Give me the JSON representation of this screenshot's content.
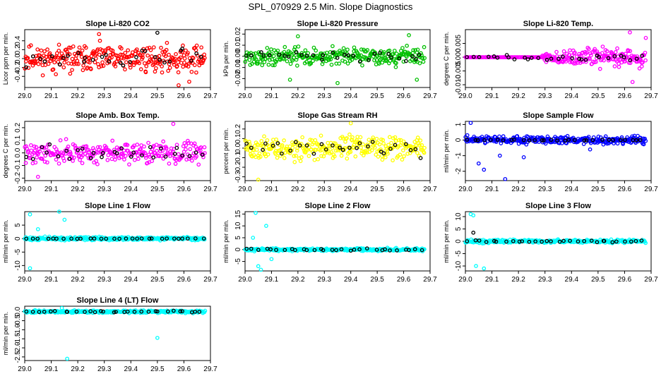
{
  "figure": {
    "title": "SPL_070929  2.5 Min. Slope Diagnostics"
  },
  "chart_data": [
    {
      "type": "scatter",
      "title": "Slope Li-820 CO2",
      "xlabel": "",
      "ylabel": "Licor ppm per min.",
      "xlim": [
        29.0,
        29.7
      ],
      "ylim": [
        -0.65,
        0.65
      ],
      "xticks": [
        "29.0",
        "29.1",
        "29.2",
        "29.3",
        "29.4",
        "29.5",
        "29.6",
        "29.7"
      ],
      "yticks": [
        -0.4,
        -0.2,
        0.0,
        0.2,
        0.4
      ],
      "ytick_labels": [
        "-0.4",
        "-0.2",
        "0.0",
        "0.2",
        "0.4"
      ],
      "series": [
        {
          "name": "all",
          "color": "#ff0000",
          "center": 0.0,
          "spread": 0.42,
          "n": 300,
          "seed": 11
        },
        {
          "name": "mean",
          "color": "#000000",
          "center": 0.0,
          "spread": 0.3,
          "n": 30,
          "seed": 12
        }
      ],
      "outliers": [
        {
          "x": 29.5,
          "y": 0.58,
          "series": "mean"
        },
        {
          "x": 29.28,
          "y": 0.55,
          "series": "all"
        },
        {
          "x": 29.58,
          "y": -0.6,
          "series": "all"
        },
        {
          "x": 29.62,
          "y": -0.52,
          "series": "all"
        }
      ]
    },
    {
      "type": "scatter",
      "title": "Slope Li-820 Pressure",
      "xlabel": "",
      "ylabel": "kPa per min.",
      "xlim": [
        29.0,
        29.7
      ],
      "ylim": [
        -0.028,
        0.024
      ],
      "xticks": [
        "29.0",
        "29.1",
        "29.2",
        "29.3",
        "29.4",
        "29.5",
        "29.6",
        "29.7"
      ],
      "yticks": [
        -0.02,
        -0.01,
        0.0,
        0.01,
        0.02
      ],
      "ytick_labels": [
        "-0.02",
        "-0.01",
        "0.00",
        "0.01",
        "0.02"
      ],
      "series": [
        {
          "name": "all",
          "color": "#00c000",
          "center": 0.0,
          "spread": 0.011,
          "n": 300,
          "seed": 21
        },
        {
          "name": "mean",
          "color": "#000000",
          "center": 0.0,
          "spread": 0.006,
          "n": 30,
          "seed": 22
        }
      ],
      "outliers": [
        {
          "x": 29.2,
          "y": 0.018,
          "series": "all"
        },
        {
          "x": 29.62,
          "y": 0.019,
          "series": "all"
        },
        {
          "x": 29.17,
          "y": -0.021,
          "series": "all"
        },
        {
          "x": 29.35,
          "y": -0.024,
          "series": "all"
        },
        {
          "x": 29.65,
          "y": -0.021,
          "series": "all"
        }
      ]
    },
    {
      "type": "scatter",
      "title": "Slope Li-820 Temp.",
      "xlabel": "",
      "ylabel": "degrees C per min.",
      "xlim": [
        29.0,
        29.7
      ],
      "ylim": [
        -0.011,
        0.01
      ],
      "xticks": [
        "29.0",
        "29.1",
        "29.2",
        "29.3",
        "29.4",
        "29.5",
        "29.6",
        "29.7"
      ],
      "yticks": [
        -0.01,
        -0.005,
        0.0,
        0.005
      ],
      "ytick_labels": [
        "-0.010",
        "-0.005",
        "0.000",
        "0.005"
      ],
      "series": [
        {
          "name": "flat",
          "color": "#ff00ff",
          "center": 0.0,
          "spread": 0.0,
          "n": 90,
          "seed": 31,
          "x_range": [
            29.0,
            29.29
          ]
        },
        {
          "name": "all",
          "color": "#ff00ff",
          "center": 0.0,
          "spread": 0.006,
          "n": 180,
          "seed": 32,
          "x_range": [
            29.29,
            29.68
          ],
          "grow": true
        },
        {
          "name": "mean",
          "color": "#000000",
          "center": 0.0,
          "spread": 0.003,
          "n": 30,
          "seed": 33,
          "grow": true
        }
      ],
      "outliers": [
        {
          "x": 29.62,
          "y": 0.009,
          "series": "all"
        },
        {
          "x": 29.68,
          "y": 0.007,
          "series": "all"
        },
        {
          "x": 29.63,
          "y": -0.009,
          "series": "all"
        }
      ]
    },
    {
      "type": "scatter",
      "title": "Slope Amb. Box Temp.",
      "xlabel": "",
      "ylabel": "degrees C per min.",
      "xlim": [
        29.0,
        29.7
      ],
      "ylim": [
        -0.22,
        0.25
      ],
      "xticks": [
        "29.0",
        "29.1",
        "29.2",
        "29.3",
        "29.4",
        "29.5",
        "29.6",
        "29.7"
      ],
      "yticks": [
        -0.2,
        -0.1,
        0.0,
        0.1,
        0.2
      ],
      "ytick_labels": [
        "-0.2",
        "-0.1",
        "0.0",
        "0.1",
        "0.2"
      ],
      "series": [
        {
          "name": "all",
          "color": "#ff00ff",
          "center": 0.0,
          "spread": 0.12,
          "n": 280,
          "seed": 41
        },
        {
          "name": "mean",
          "color": "#000000",
          "center": 0.0,
          "spread": 0.08,
          "n": 30,
          "seed": 42
        }
      ],
      "outliers": [
        {
          "x": 29.56,
          "y": 0.23,
          "series": "all"
        },
        {
          "x": 29.05,
          "y": -0.19,
          "series": "all"
        }
      ]
    },
    {
      "type": "scatter",
      "title": "Slope Gas Stream RH",
      "xlabel": "",
      "ylabel": "percent per min.",
      "xlim": [
        29.0,
        29.7
      ],
      "ylim": [
        -0.34,
        0.28
      ],
      "xticks": [
        "29.0",
        "29.1",
        "29.2",
        "29.3",
        "29.4",
        "29.5",
        "29.6",
        "29.7"
      ],
      "yticks": [
        -0.3,
        -0.2,
        -0.1,
        0.0,
        0.1,
        0.2
      ],
      "ytick_labels": [
        "-0.3",
        "-0.2",
        "-0.1",
        "0.0",
        "0.1",
        "0.2"
      ],
      "series": [
        {
          "name": "all",
          "color": "#ffff00",
          "center": 0.0,
          "spread": 0.17,
          "n": 300,
          "seed": 51
        },
        {
          "name": "mean",
          "color": "#000000",
          "center": 0.0,
          "spread": 0.14,
          "n": 30,
          "seed": 52
        }
      ],
      "outliers": [
        {
          "x": 29.05,
          "y": -0.33,
          "series": "all"
        },
        {
          "x": 29.4,
          "y": 0.26,
          "series": "all"
        }
      ]
    },
    {
      "type": "scatter",
      "title": "Slope Sample Flow",
      "xlabel": "",
      "ylabel": "ml/min per min.",
      "xlim": [
        29.0,
        29.7
      ],
      "ylim": [
        -2.6,
        1.2
      ],
      "xticks": [
        "29.0",
        "29.1",
        "29.2",
        "29.3",
        "29.4",
        "29.5",
        "29.6",
        "29.7"
      ],
      "yticks": [
        -2,
        -1,
        0,
        1
      ],
      "ytick_labels": [
        "-2",
        "-1",
        "0",
        "1"
      ],
      "series": [
        {
          "name": "all",
          "color": "#0000ff",
          "center": 0.0,
          "spread": 0.35,
          "n": 300,
          "seed": 61
        },
        {
          "name": "mean",
          "color": "#000000",
          "center": 0.0,
          "spread": 0.05,
          "n": 30,
          "seed": 62
        }
      ],
      "outliers": [
        {
          "x": 29.02,
          "y": 1.1,
          "series": "all"
        },
        {
          "x": 29.05,
          "y": -1.5,
          "series": "all"
        },
        {
          "x": 29.07,
          "y": -1.9,
          "series": "all"
        },
        {
          "x": 29.13,
          "y": -1.0,
          "series": "all"
        },
        {
          "x": 29.15,
          "y": -2.5,
          "series": "all"
        },
        {
          "x": 29.22,
          "y": -1.1,
          "series": "all"
        },
        {
          "x": 29.47,
          "y": -0.6,
          "series": "all"
        }
      ]
    },
    {
      "type": "scatter",
      "title": "Slope Line 1 Flow",
      "xlabel": "",
      "ylabel": "ml/min per min.",
      "xlim": [
        29.0,
        29.7
      ],
      "ylim": [
        -12,
        10
      ],
      "xticks": [
        "29.0",
        "29.1",
        "29.2",
        "29.3",
        "29.4",
        "29.5",
        "29.6",
        "29.7"
      ],
      "yticks": [
        -10,
        -5,
        0,
        5
      ],
      "ytick_labels": [
        "-10",
        "-5",
        "0",
        "5"
      ],
      "series": [
        {
          "name": "all",
          "color": "#00ffff",
          "center": 0.0,
          "spread": 0.9,
          "n": 300,
          "seed": 71
        },
        {
          "name": "mean",
          "color": "#000000",
          "center": 0.0,
          "spread": 0.15,
          "n": 30,
          "seed": 72
        }
      ],
      "outliers": [
        {
          "x": 29.02,
          "y": 9,
          "series": "all"
        },
        {
          "x": 29.13,
          "y": 10,
          "series": "all"
        },
        {
          "x": 29.15,
          "y": 7,
          "series": "all"
        },
        {
          "x": 29.02,
          "y": -11,
          "series": "all"
        },
        {
          "x": 29.05,
          "y": 3.5,
          "series": "all"
        }
      ]
    },
    {
      "type": "scatter",
      "title": "Slope Line 2 Flow",
      "xlabel": "",
      "ylabel": "ml/min per min.",
      "xlim": [
        29.0,
        29.7
      ],
      "ylim": [
        -9,
        16
      ],
      "xticks": [
        "29.0",
        "29.1",
        "29.2",
        "29.3",
        "29.4",
        "29.5",
        "29.6",
        "29.7"
      ],
      "yticks": [
        -5,
        0,
        5,
        10,
        15
      ],
      "ytick_labels": [
        "-5",
        "0",
        "5",
        "10",
        "15"
      ],
      "series": [
        {
          "name": "all",
          "color": "#00ffff",
          "center": 0.0,
          "spread": 0.9,
          "n": 300,
          "seed": 81
        },
        {
          "name": "mean",
          "color": "#000000",
          "center": 0.0,
          "spread": 0.6,
          "n": 30,
          "seed": 82
        }
      ],
      "outliers": [
        {
          "x": 29.04,
          "y": 15.5,
          "series": "all"
        },
        {
          "x": 29.08,
          "y": 10,
          "series": "all"
        },
        {
          "x": 29.03,
          "y": 5,
          "series": "all"
        },
        {
          "x": 29.05,
          "y": -7,
          "series": "all"
        },
        {
          "x": 29.06,
          "y": -8.5,
          "series": "all"
        },
        {
          "x": 29.1,
          "y": -4,
          "series": "all"
        }
      ]
    },
    {
      "type": "scatter",
      "title": "Slope Line 3 Flow",
      "xlabel": "",
      "ylabel": "ml/min per min.",
      "xlim": [
        29.0,
        29.7
      ],
      "ylim": [
        -12,
        12
      ],
      "xticks": [
        "29.0",
        "29.1",
        "29.2",
        "29.3",
        "29.4",
        "29.5",
        "29.6",
        "29.7"
      ],
      "yticks": [
        -10,
        -5,
        0,
        5,
        10
      ],
      "ytick_labels": [
        "-10",
        "-5",
        "0",
        "5",
        "10"
      ],
      "series": [
        {
          "name": "all",
          "color": "#00ffff",
          "center": 0.0,
          "spread": 1.0,
          "n": 300,
          "seed": 91
        },
        {
          "name": "mean",
          "color": "#000000",
          "center": 0.0,
          "spread": 0.7,
          "n": 30,
          "seed": 92
        }
      ],
      "outliers": [
        {
          "x": 29.02,
          "y": 11,
          "series": "all"
        },
        {
          "x": 29.03,
          "y": 10.5,
          "series": "all"
        },
        {
          "x": 29.04,
          "y": -10,
          "series": "all"
        },
        {
          "x": 29.07,
          "y": -11,
          "series": "all"
        },
        {
          "x": 29.03,
          "y": 3.5,
          "series": "mean"
        }
      ]
    },
    {
      "type": "scatter",
      "title": "Slope Line 4 (LT) Flow",
      "xlabel": "",
      "ylabel": "ml/min per min.",
      "xlim": [
        29.0,
        29.7
      ],
      "ylim": [
        -2.7,
        0.3
      ],
      "xticks": [
        "29.0",
        "29.1",
        "29.2",
        "29.3",
        "29.4",
        "29.5",
        "29.6",
        "29.7"
      ],
      "yticks": [
        -2.5,
        -2.0,
        -1.5,
        -1.0,
        -0.5,
        0.0
      ],
      "ytick_labels": [
        "-2.5",
        "-2.0",
        "-1.5",
        "-1.0",
        "-0.5",
        "0.0"
      ],
      "series": [
        {
          "name": "all",
          "color": "#00ffff",
          "center": 0.0,
          "spread": 0.1,
          "n": 300,
          "seed": 101
        },
        {
          "name": "mean",
          "color": "#000000",
          "center": 0.0,
          "spread": 0.06,
          "n": 30,
          "seed": 102
        }
      ],
      "outliers": [
        {
          "x": 29.5,
          "y": -1.45,
          "series": "all"
        },
        {
          "x": 29.16,
          "y": -2.6,
          "series": "all"
        },
        {
          "x": 29.14,
          "y": 0.2,
          "series": "all"
        }
      ]
    }
  ]
}
